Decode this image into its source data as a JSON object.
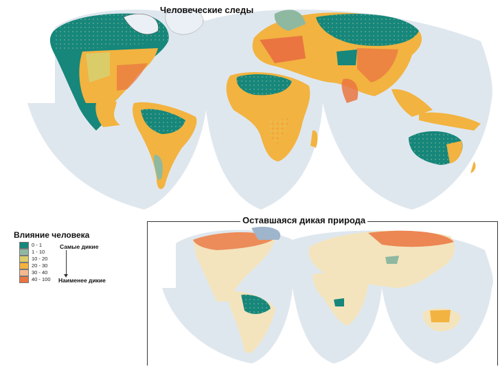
{
  "main_map": {
    "title": "Человеческие следы"
  },
  "inset_map": {
    "title": "Оставшаяся дикая природа"
  },
  "legend": {
    "title": "Влияние человека",
    "most_wild": "Самые дикие",
    "least_wild": "Наименее дикие",
    "classes": [
      {
        "label": "0 - 1",
        "color": "#16877a"
      },
      {
        "label": "1 - 10",
        "color": "#8fb8a1"
      },
      {
        "label": "10 - 20",
        "color": "#dbcc6a"
      },
      {
        "label": "20 - 30",
        "color": "#f2b340"
      },
      {
        "label": "30 - 40",
        "color": "#f3b98f"
      },
      {
        "label": "40 - 100",
        "color": "#ea7541"
      }
    ]
  },
  "colors": {
    "ocean": "#dfe7ee",
    "ice": "#eaf0f5",
    "wild_remaining": "#f3e4bd",
    "borders": "#4a4a4a"
  }
}
